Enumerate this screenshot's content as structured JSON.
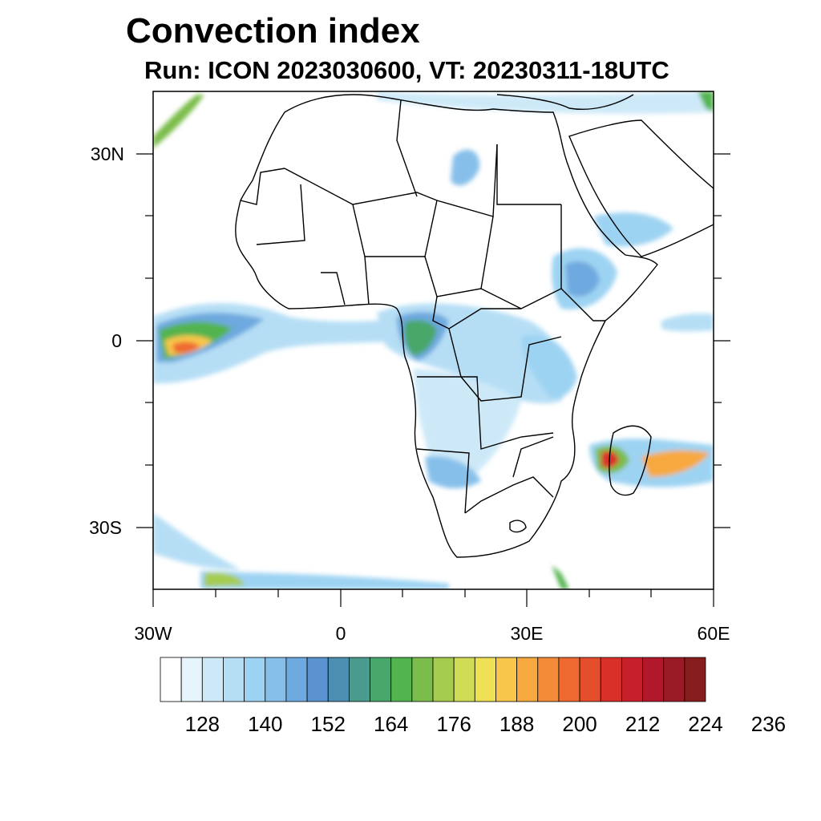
{
  "title": "Convection index",
  "subtitle": "Run: ICON 2023030600,  VT: 20230311-18UTC",
  "map": {
    "lon_range": [
      -30,
      60
    ],
    "lat_range": [
      -40,
      40
    ],
    "lon_ticks": [
      {
        "value": -30,
        "label": "30W"
      },
      {
        "value": 0,
        "label": "0"
      },
      {
        "value": 30,
        "label": "30E"
      },
      {
        "value": 60,
        "label": "60E"
      }
    ],
    "lat_ticks": [
      {
        "value": 30,
        "label": "30N"
      },
      {
        "value": 0,
        "label": "0"
      },
      {
        "value": -30,
        "label": "30S"
      }
    ]
  },
  "colorbar": {
    "colors": [
      "#ffffff",
      "#e6f4fc",
      "#cde9f8",
      "#b5def5",
      "#9dd3f2",
      "#86c0ea",
      "#6ea9df",
      "#5a93d0",
      "#4d8fb2",
      "#4a9b8e",
      "#48a76a",
      "#52b44f",
      "#7bbd4c",
      "#a6cc4f",
      "#d0dc55",
      "#efe155",
      "#f8c64a",
      "#f7a93f",
      "#f48b38",
      "#ef6a30",
      "#e54e2b",
      "#d93029",
      "#c8202a",
      "#b2182b",
      "#9a1a25",
      "#851d1d"
    ],
    "labels": [
      "128",
      "140",
      "152",
      "164",
      "176",
      "188",
      "200",
      "212",
      "224",
      "236"
    ]
  }
}
